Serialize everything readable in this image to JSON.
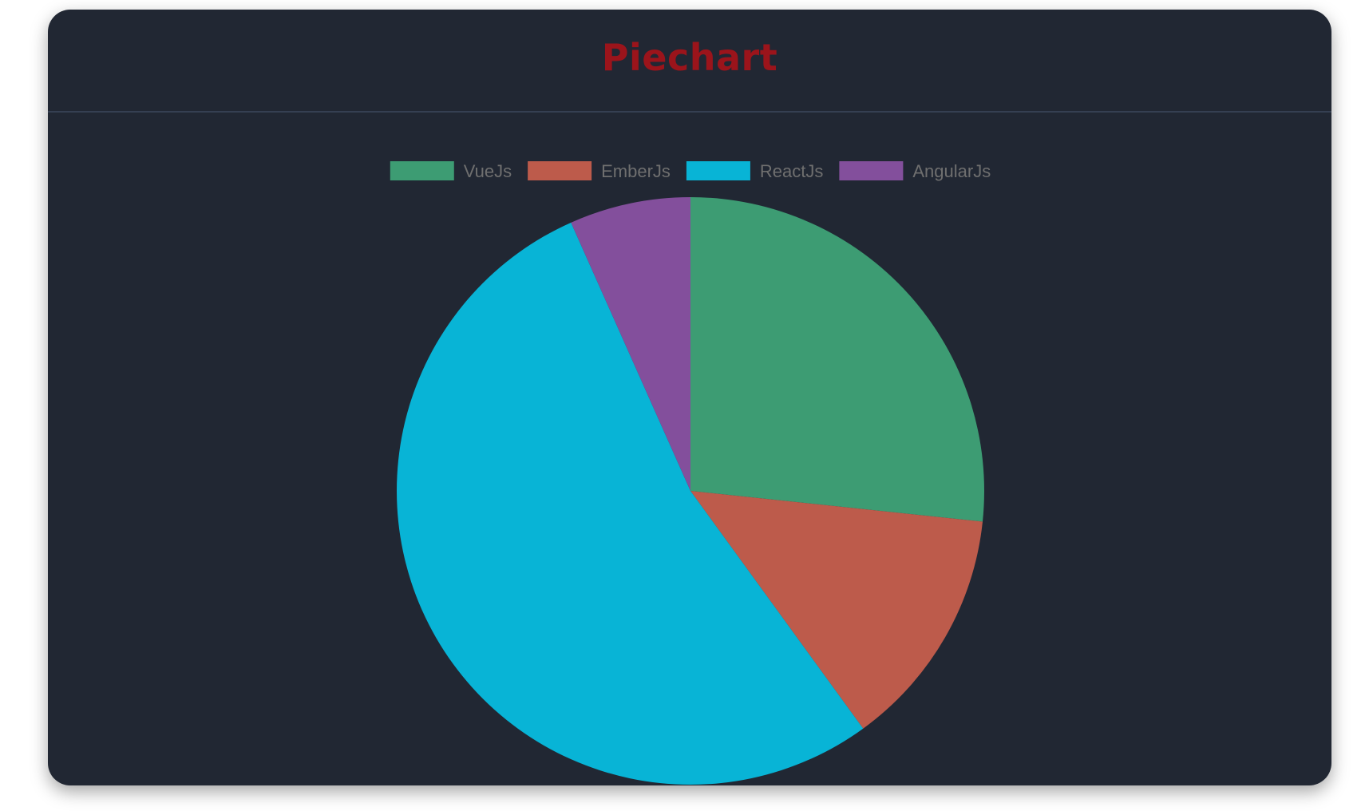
{
  "header": {
    "title": "Piechart"
  },
  "chart_data": {
    "type": "pie",
    "title": "Piechart",
    "categories": [
      "VueJs",
      "EmberJs",
      "ReactJs",
      "AngularJs"
    ],
    "values": [
      40,
      20,
      80,
      10
    ],
    "colors": [
      "#3d9c73",
      "#bd5b4b",
      "#08b4d6",
      "#834f9c"
    ],
    "legend_position": "top",
    "start_angle": "top, clockwise"
  }
}
